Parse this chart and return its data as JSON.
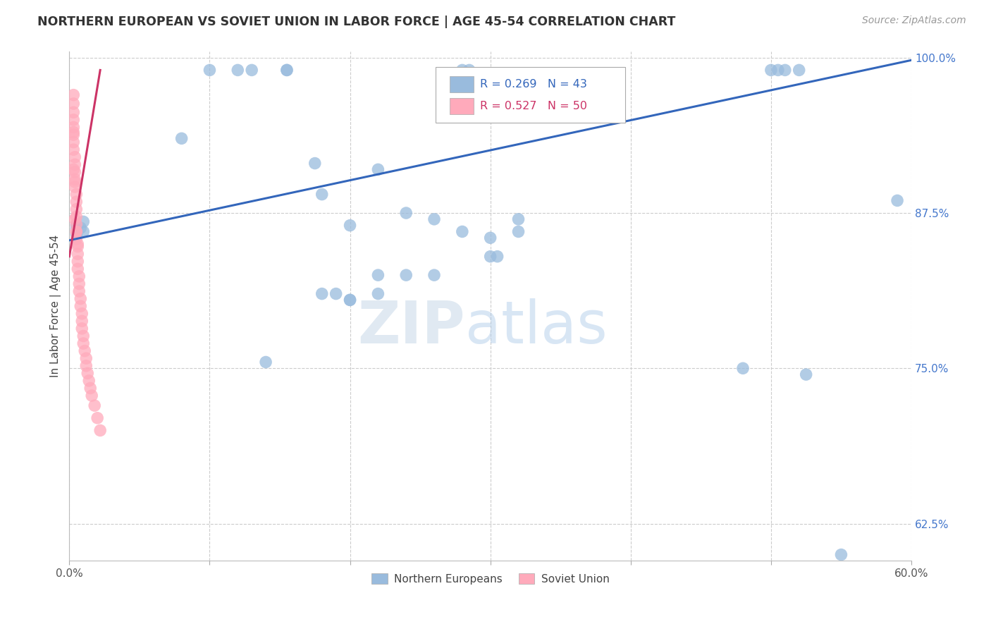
{
  "title": "NORTHERN EUROPEAN VS SOVIET UNION IN LABOR FORCE | AGE 45-54 CORRELATION CHART",
  "source": "Source: ZipAtlas.com",
  "ylabel": "In Labor Force | Age 45-54",
  "xlim": [
    0.0,
    0.6
  ],
  "ylim": [
    0.595,
    1.005
  ],
  "xticks": [
    0.0,
    0.1,
    0.2,
    0.3,
    0.4,
    0.5,
    0.6
  ],
  "xticklabels": [
    "0.0%",
    "",
    "",
    "",
    "",
    "",
    "60.0%"
  ],
  "yticks": [
    0.625,
    0.75,
    0.875,
    1.0
  ],
  "yticklabels": [
    "62.5%",
    "75.0%",
    "87.5%",
    "100.0%"
  ],
  "grid_yticks": [
    0.625,
    0.75,
    0.875,
    1.0
  ],
  "grid_xticks": [
    0.0,
    0.1,
    0.2,
    0.3,
    0.4,
    0.5,
    0.6
  ],
  "grid_color": "#cccccc",
  "background_color": "#ffffff",
  "blue_color": "#99bbdd",
  "pink_color": "#ffaabb",
  "blue_line_color": "#3366bb",
  "pink_line_color": "#cc3366",
  "R_blue": 0.269,
  "N_blue": 43,
  "R_pink": 0.527,
  "N_pink": 50,
  "legend_entries": [
    "Northern Europeans",
    "Soviet Union"
  ],
  "watermark": "ZIPatlas",
  "blue_dots_x": [
    0.005,
    0.005,
    0.005,
    0.008,
    0.01,
    0.01,
    0.08,
    0.1,
    0.12,
    0.13,
    0.155,
    0.155,
    0.175,
    0.18,
    0.2,
    0.22,
    0.24,
    0.26,
    0.28,
    0.285,
    0.28,
    0.3,
    0.305,
    0.32,
    0.22,
    0.24,
    0.26,
    0.18,
    0.19,
    0.2,
    0.14,
    0.2,
    0.22,
    0.3,
    0.32,
    0.5,
    0.505,
    0.51,
    0.52,
    0.525,
    0.48,
    0.55,
    0.59
  ],
  "blue_dots_y": [
    0.865,
    0.862,
    0.858,
    0.863,
    0.868,
    0.86,
    0.935,
    0.99,
    0.99,
    0.99,
    0.99,
    0.99,
    0.915,
    0.89,
    0.865,
    0.91,
    0.875,
    0.87,
    0.99,
    0.99,
    0.86,
    0.855,
    0.84,
    0.87,
    0.825,
    0.825,
    0.825,
    0.81,
    0.81,
    0.805,
    0.755,
    0.805,
    0.81,
    0.84,
    0.86,
    0.99,
    0.99,
    0.99,
    0.99,
    0.745,
    0.75,
    0.6,
    0.885
  ],
  "pink_dots_x": [
    0.003,
    0.003,
    0.003,
    0.003,
    0.003,
    0.003,
    0.003,
    0.003,
    0.004,
    0.004,
    0.004,
    0.004,
    0.004,
    0.005,
    0.005,
    0.005,
    0.005,
    0.005,
    0.005,
    0.005,
    0.006,
    0.006,
    0.006,
    0.006,
    0.007,
    0.007,
    0.007,
    0.008,
    0.008,
    0.009,
    0.009,
    0.009,
    0.01,
    0.01,
    0.011,
    0.012,
    0.012,
    0.013,
    0.014,
    0.015,
    0.016,
    0.018,
    0.02,
    0.022,
    0.003,
    0.003,
    0.004,
    0.004,
    0.005,
    0.006
  ],
  "pink_dots_y": [
    0.97,
    0.963,
    0.956,
    0.95,
    0.944,
    0.938,
    0.932,
    0.926,
    0.92,
    0.914,
    0.908,
    0.902,
    0.896,
    0.89,
    0.884,
    0.878,
    0.872,
    0.866,
    0.86,
    0.854,
    0.848,
    0.842,
    0.836,
    0.83,
    0.824,
    0.818,
    0.812,
    0.806,
    0.8,
    0.794,
    0.788,
    0.782,
    0.776,
    0.77,
    0.764,
    0.758,
    0.752,
    0.746,
    0.74,
    0.734,
    0.728,
    0.72,
    0.71,
    0.7,
    0.94,
    0.91,
    0.9,
    0.87,
    0.86,
    0.85
  ],
  "blue_line_x": [
    0.0,
    0.6
  ],
  "blue_line_y": [
    0.853,
    0.998
  ],
  "pink_line_x": [
    0.0,
    0.022
  ],
  "pink_line_y": [
    0.84,
    0.99
  ]
}
